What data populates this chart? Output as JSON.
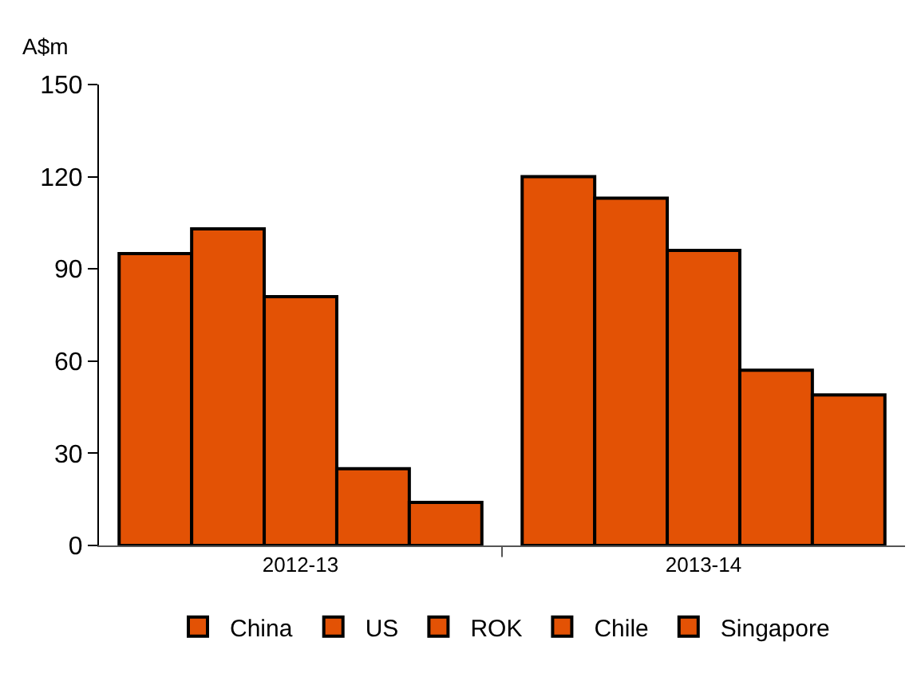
{
  "chart_data": {
    "type": "bar",
    "ylabel": "A$m",
    "categories": [
      "2012-13",
      "2013-14"
    ],
    "series": [
      {
        "name": "China",
        "color": "#e35205",
        "values": [
          95,
          120
        ]
      },
      {
        "name": "US",
        "color": "#e35205",
        "values": [
          103,
          113
        ]
      },
      {
        "name": "ROK",
        "color": "#e35205",
        "values": [
          81,
          96
        ]
      },
      {
        "name": "Chile",
        "color": "#e35205",
        "values": [
          25,
          57
        ]
      },
      {
        "name": "Singapore",
        "color": "#e35205",
        "values": [
          14,
          49
        ]
      }
    ],
    "ylim": [
      0,
      150
    ],
    "yticks": [
      0,
      30,
      60,
      90,
      120,
      150
    ],
    "legend": "bottom"
  }
}
